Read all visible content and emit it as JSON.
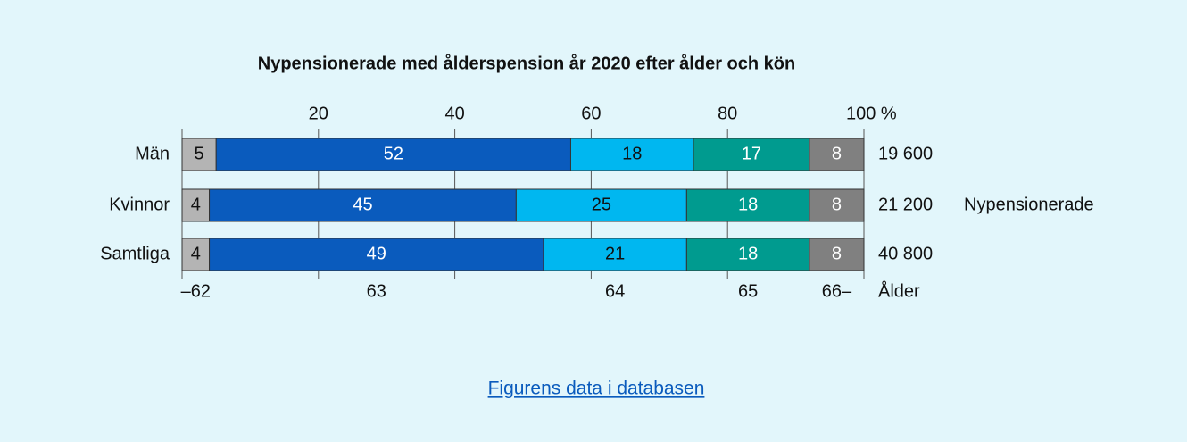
{
  "chart_data": {
    "type": "stacked-bar-horizontal",
    "title": "Nypensionerade med ålderspension år 2020 efter ålder och kön",
    "categories": [
      "Män",
      "Kvinnor",
      "Samtliga"
    ],
    "series_label": "Ålder",
    "series": [
      {
        "name": "–62",
        "color": "#b4b4b4",
        "values": [
          5,
          4,
          4
        ]
      },
      {
        "name": "63",
        "color": "#0a5bbd",
        "values": [
          52,
          45,
          49
        ]
      },
      {
        "name": "64",
        "color": "#00b7f0",
        "values": [
          18,
          25,
          21
        ]
      },
      {
        "name": "65",
        "color": "#009b8f",
        "values": [
          17,
          18,
          18
        ]
      },
      {
        "name": "66–",
        "color": "#808080",
        "values": [
          8,
          8,
          8
        ]
      }
    ],
    "xlim": [
      0,
      100
    ],
    "xticks": [
      20,
      40,
      60,
      80,
      {
        "value": 100,
        "label": "100 %"
      }
    ],
    "grid": true,
    "totals": {
      "label": "Nypensionerade",
      "values": [
        19600,
        21200,
        40800
      ],
      "value_labels": [
        "19 600",
        "21 200",
        "40 800"
      ]
    },
    "link": "Figurens data i databasen"
  }
}
